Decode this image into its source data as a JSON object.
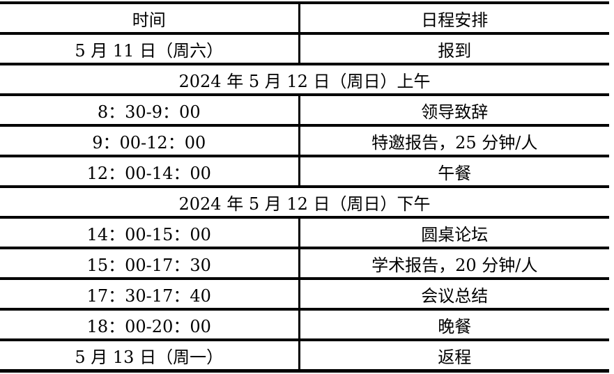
{
  "table": {
    "columns": [
      "时间",
      "日程安排"
    ],
    "rows": [
      {
        "type": "data",
        "time": "5 月 11 日（周六）",
        "event": "报到"
      },
      {
        "type": "section",
        "label": "2024 年 5 月 12 日（周日）上午"
      },
      {
        "type": "data",
        "time": "8：30-9：00",
        "event": "领导致辞"
      },
      {
        "type": "data",
        "time": "9：00-12：00",
        "event": "特邀报告，25 分钟/人"
      },
      {
        "type": "data",
        "time": "12：00-14：00",
        "event": "午餐"
      },
      {
        "type": "section",
        "label": "2024 年 5 月 12 日（周日）下午"
      },
      {
        "type": "data",
        "time": "14：00-15：00",
        "event": "圆桌论坛"
      },
      {
        "type": "data",
        "time": "15：00-17：30",
        "event": "学术报告，20 分钟/人"
      },
      {
        "type": "data",
        "time": "17：30-17：40",
        "event": "会议总结"
      },
      {
        "type": "data",
        "time": "18：00-20：00",
        "event": "晚餐"
      },
      {
        "type": "data",
        "time": "5 月 13 日（周一）",
        "event": "返程"
      }
    ]
  },
  "colors": {
    "border": "#000000",
    "text": "#000000",
    "background": "#ffffff"
  }
}
